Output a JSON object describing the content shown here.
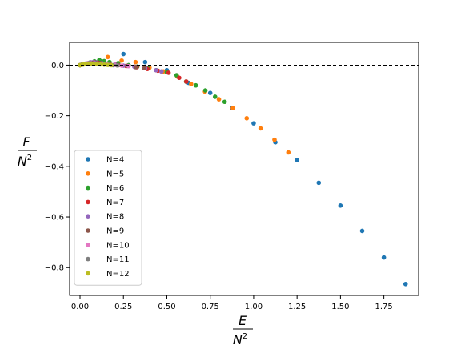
{
  "chart_data": {
    "type": "scatter",
    "title": "",
    "xlabel": {
      "numerator": "E",
      "denominator": "N",
      "exponent": "2"
    },
    "ylabel": {
      "numerator": "F",
      "denominator": "N",
      "exponent": "2"
    },
    "xlim": [
      -0.06,
      1.95
    ],
    "ylim": [
      -0.91,
      0.09
    ],
    "xticks": [
      0.0,
      0.25,
      0.5,
      0.75,
      1.0,
      1.25,
      1.5,
      1.75
    ],
    "xtick_labels": [
      "0.00",
      "0.25",
      "0.50",
      "0.75",
      "1.00",
      "1.25",
      "1.50",
      "1.75"
    ],
    "yticks": [
      0.0,
      -0.2,
      -0.4,
      -0.6,
      -0.8
    ],
    "ytick_labels": [
      "0.0",
      "−0.2",
      "−0.4",
      "−0.6",
      "−0.8"
    ],
    "reference_line": {
      "y": 0.0,
      "style": "dashed",
      "color": "#000000"
    },
    "grid": false,
    "legend_position": "lower-left",
    "series": [
      {
        "name": "N=4",
        "color": "#1f77b4",
        "points": [
          [
            0.0,
            0.0
          ],
          [
            0.03,
            0.005
          ],
          [
            0.06,
            0.01
          ],
          [
            0.09,
            0.012
          ],
          [
            0.12,
            0.015
          ],
          [
            0.25,
            0.044
          ],
          [
            0.375,
            0.012
          ],
          [
            0.5,
            -0.02
          ],
          [
            0.625,
            -0.07
          ],
          [
            0.75,
            -0.11
          ],
          [
            0.875,
            -0.17
          ],
          [
            1.0,
            -0.23
          ],
          [
            1.125,
            -0.305
          ],
          [
            1.25,
            -0.375
          ],
          [
            1.375,
            -0.465
          ],
          [
            1.5,
            -0.555
          ],
          [
            1.625,
            -0.655
          ],
          [
            1.75,
            -0.76
          ],
          [
            1.875,
            -0.865
          ]
        ]
      },
      {
        "name": "N=5",
        "color": "#ff7f0e",
        "points": [
          [
            0.0,
            0.0
          ],
          [
            0.04,
            0.005
          ],
          [
            0.08,
            0.01
          ],
          [
            0.16,
            0.032
          ],
          [
            0.24,
            0.018
          ],
          [
            0.32,
            0.012
          ],
          [
            0.4,
            -0.01
          ],
          [
            0.48,
            -0.025
          ],
          [
            0.56,
            -0.045
          ],
          [
            0.64,
            -0.075
          ],
          [
            0.72,
            -0.105
          ],
          [
            0.8,
            -0.135
          ],
          [
            0.88,
            -0.17
          ],
          [
            0.96,
            -0.21
          ],
          [
            1.04,
            -0.25
          ],
          [
            1.12,
            -0.295
          ],
          [
            1.2,
            -0.345
          ]
        ]
      },
      {
        "name": "N=6",
        "color": "#2ca02c",
        "points": [
          [
            0.0,
            0.0
          ],
          [
            0.028,
            0.005
          ],
          [
            0.056,
            0.01
          ],
          [
            0.083,
            0.015
          ],
          [
            0.111,
            0.02
          ],
          [
            0.139,
            0.016
          ],
          [
            0.17,
            0.012
          ],
          [
            0.22,
            0.008
          ],
          [
            0.28,
            0.0
          ],
          [
            0.33,
            -0.006
          ],
          [
            0.39,
            -0.012
          ],
          [
            0.44,
            -0.02
          ],
          [
            0.5,
            -0.028
          ],
          [
            0.556,
            -0.04
          ],
          [
            0.611,
            -0.065
          ],
          [
            0.667,
            -0.08
          ],
          [
            0.722,
            -0.1
          ],
          [
            0.778,
            -0.125
          ],
          [
            0.833,
            -0.145
          ]
        ]
      },
      {
        "name": "N=7",
        "color": "#d62728",
        "points": [
          [
            0.0,
            0.0
          ],
          [
            0.02,
            0.004
          ],
          [
            0.041,
            0.006
          ],
          [
            0.061,
            0.008
          ],
          [
            0.082,
            0.012
          ],
          [
            0.102,
            0.01
          ],
          [
            0.122,
            0.008
          ],
          [
            0.163,
            0.005
          ],
          [
            0.204,
            0.002
          ],
          [
            0.265,
            -0.003
          ],
          [
            0.327,
            -0.008
          ],
          [
            0.388,
            -0.015
          ],
          [
            0.449,
            -0.022
          ],
          [
            0.51,
            -0.03
          ],
          [
            0.571,
            -0.05
          ],
          [
            0.612,
            -0.065
          ]
        ]
      },
      {
        "name": "N=8",
        "color": "#9467bd",
        "points": [
          [
            0.0,
            0.0
          ],
          [
            0.016,
            0.004
          ],
          [
            0.031,
            0.006
          ],
          [
            0.047,
            0.008
          ],
          [
            0.063,
            0.011
          ],
          [
            0.078,
            0.012
          ],
          [
            0.094,
            0.01
          ],
          [
            0.125,
            0.008
          ],
          [
            0.156,
            0.006
          ],
          [
            0.203,
            0.002
          ],
          [
            0.25,
            -0.002
          ],
          [
            0.313,
            -0.006
          ],
          [
            0.375,
            -0.012
          ],
          [
            0.438,
            -0.02
          ],
          [
            0.469,
            -0.025
          ]
        ]
      },
      {
        "name": "N=9",
        "color": "#8c564b",
        "points": [
          [
            0.0,
            0.0
          ],
          [
            0.012,
            0.003
          ],
          [
            0.025,
            0.005
          ],
          [
            0.037,
            0.006
          ],
          [
            0.049,
            0.007
          ],
          [
            0.062,
            0.008
          ],
          [
            0.074,
            0.009
          ],
          [
            0.099,
            0.008
          ],
          [
            0.123,
            0.007
          ],
          [
            0.173,
            0.004
          ],
          [
            0.222,
            0.0
          ],
          [
            0.272,
            -0.003
          ],
          [
            0.321,
            -0.008
          ],
          [
            0.37,
            -0.012
          ]
        ]
      },
      {
        "name": "N=10",
        "color": "#e377c2",
        "points": [
          [
            0.0,
            0.0
          ],
          [
            0.01,
            0.002
          ],
          [
            0.02,
            0.004
          ],
          [
            0.03,
            0.005
          ],
          [
            0.04,
            0.006
          ],
          [
            0.05,
            0.007
          ],
          [
            0.06,
            0.008
          ],
          [
            0.08,
            0.007
          ],
          [
            0.1,
            0.006
          ],
          [
            0.13,
            0.005
          ],
          [
            0.16,
            0.003
          ],
          [
            0.2,
            0.001
          ],
          [
            0.24,
            -0.002
          ],
          [
            0.28,
            -0.004
          ]
        ]
      },
      {
        "name": "N=11",
        "color": "#7f7f7f",
        "points": [
          [
            0.0,
            0.0
          ],
          [
            0.008,
            0.002
          ],
          [
            0.017,
            0.003
          ],
          [
            0.025,
            0.004
          ],
          [
            0.033,
            0.005
          ],
          [
            0.041,
            0.006
          ],
          [
            0.058,
            0.007
          ],
          [
            0.074,
            0.006
          ],
          [
            0.091,
            0.005
          ],
          [
            0.116,
            0.004
          ],
          [
            0.14,
            0.003
          ],
          [
            0.165,
            0.002
          ],
          [
            0.19,
            0.0
          ],
          [
            0.215,
            -0.001
          ]
        ]
      },
      {
        "name": "N=12",
        "color": "#bcbd22",
        "points": [
          [
            0.0,
            0.0
          ],
          [
            0.007,
            0.001
          ],
          [
            0.014,
            0.002
          ],
          [
            0.021,
            0.003
          ],
          [
            0.028,
            0.004
          ],
          [
            0.035,
            0.005
          ],
          [
            0.049,
            0.006
          ],
          [
            0.063,
            0.006
          ],
          [
            0.076,
            0.005
          ],
          [
            0.097,
            0.004
          ],
          [
            0.118,
            0.003
          ],
          [
            0.139,
            0.002
          ],
          [
            0.16,
            0.001
          ],
          [
            0.18,
            0.0
          ]
        ]
      }
    ]
  }
}
